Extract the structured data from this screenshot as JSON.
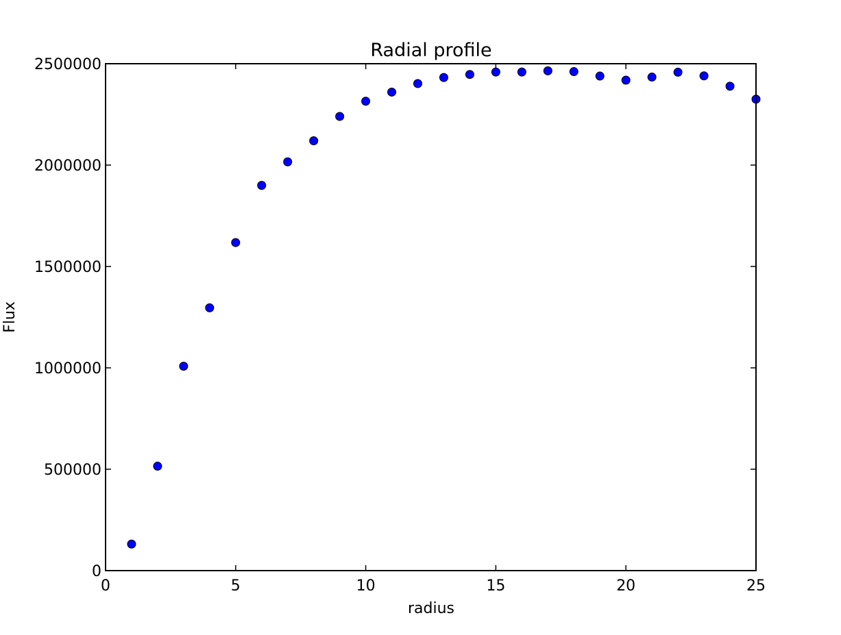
{
  "chart_data": {
    "type": "scatter",
    "title": "Radial profile",
    "xlabel": "radius",
    "ylabel": "Flux",
    "xlim": [
      0,
      25
    ],
    "ylim": [
      0,
      2500000
    ],
    "xticks": [
      0,
      5,
      10,
      15,
      20,
      25
    ],
    "xtick_labels": [
      "0",
      "5",
      "10",
      "15",
      "20",
      "25"
    ],
    "yticks": [
      0,
      500000,
      1000000,
      1500000,
      2000000,
      2500000
    ],
    "ytick_labels": [
      "0",
      "500000",
      "1000000",
      "1500000",
      "2000000",
      "2500000"
    ],
    "grid": false,
    "marker_color": "#0000ff",
    "marker_edge_color": "#000000",
    "x": [
      1,
      2,
      3,
      4,
      5,
      6,
      7,
      8,
      9,
      10,
      11,
      12,
      13,
      14,
      15,
      16,
      17,
      18,
      19,
      20,
      21,
      22,
      23,
      24,
      25
    ],
    "y": [
      131000,
      515000,
      1008000,
      1296000,
      1618000,
      1900000,
      2016000,
      2120000,
      2240000,
      2315000,
      2360000,
      2402000,
      2432000,
      2447000,
      2459000,
      2459000,
      2465000,
      2461000,
      2439000,
      2419000,
      2434000,
      2458000,
      2440000,
      2389000,
      2325000
    ]
  }
}
